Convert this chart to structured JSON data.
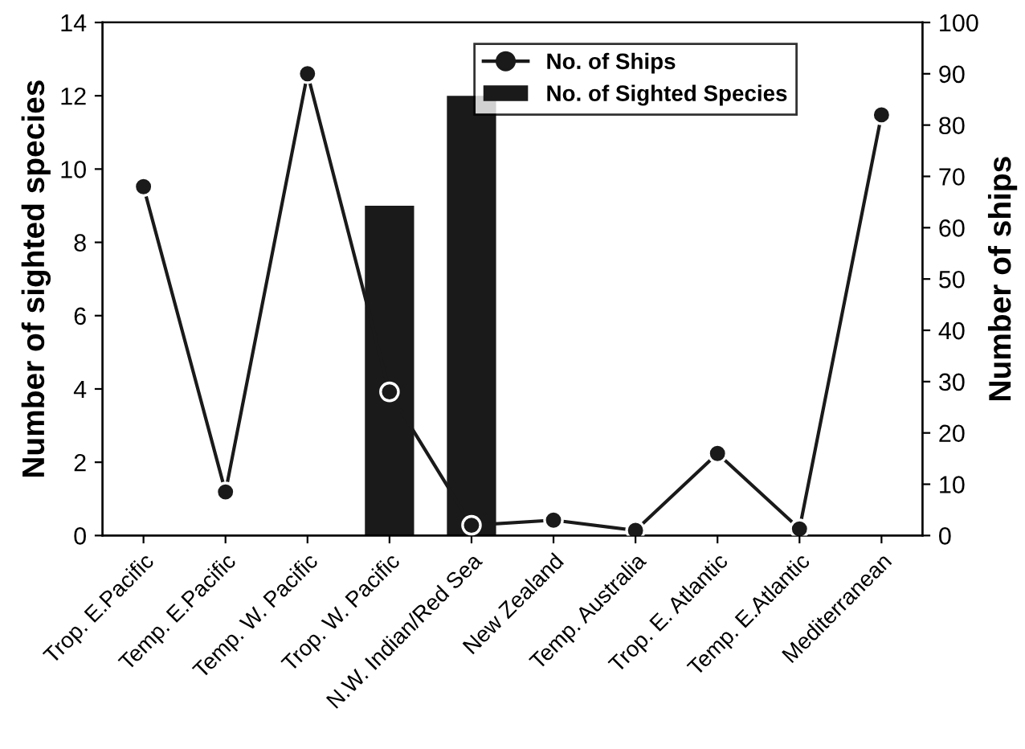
{
  "chart_data": {
    "type": "bar",
    "categories": [
      "Trop. E.Pacific",
      "Temp. E.Pacific",
      "Temp. W. Pacific",
      "Trop. W. Pacific",
      "N.W. Indian/Red Sea",
      "New Zealand",
      "Temp. Australia",
      "Trop. E. Atlantic",
      "Temp. E.Atlantic",
      "Mediterranean"
    ],
    "series": [
      {
        "name": "No. of Sighted Species",
        "color": "#1a1a1a",
        "values": [
          0,
          0,
          0,
          9,
          12,
          0,
          0,
          0,
          0,
          0
        ]
      },
      {
        "name": "No. of Ships",
        "type": "line",
        "axis": "y2",
        "color": "#1a1a1a",
        "marker": "circle",
        "values": [
          68,
          8.5,
          90,
          28,
          2,
          3,
          1,
          16,
          1.3,
          82
        ]
      }
    ],
    "ylabel": "Number of sighted species",
    "y2label": "Number of ships",
    "ylim": [
      0,
      14
    ],
    "yticks": [
      0,
      2,
      4,
      6,
      8,
      10,
      12,
      14
    ],
    "y2lim": [
      0,
      100
    ],
    "y2ticks": [
      0,
      10,
      20,
      30,
      40,
      50,
      60,
      70,
      80,
      90,
      100
    ],
    "legend": "top right",
    "grid": false
  }
}
